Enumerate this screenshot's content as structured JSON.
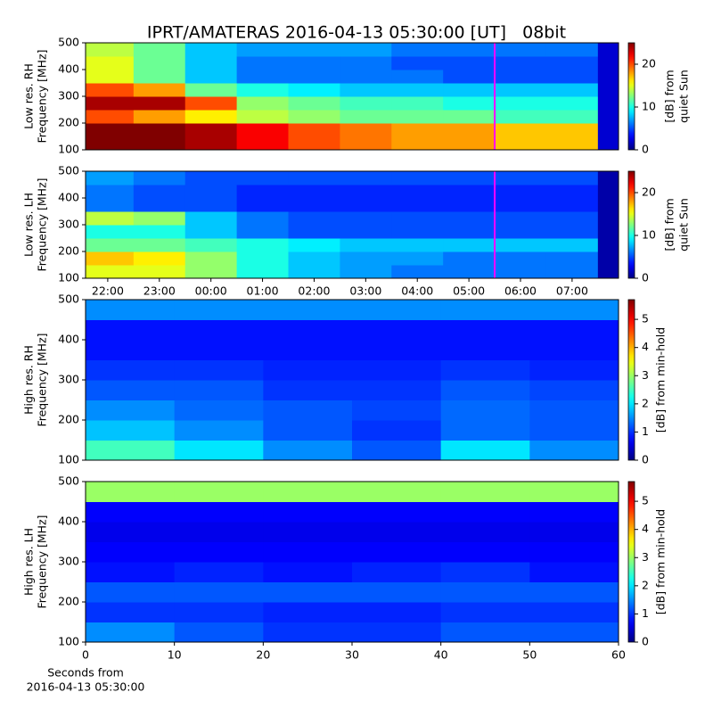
{
  "title": "IPRT/AMATERAS 2016-04-13 05:30:00 [UT]   08bit",
  "chart_data": [
    {
      "type": "heatmap",
      "ylabel_lines": [
        "Low res. RH",
        "Frequency [MHz]"
      ],
      "xlim": [
        21.57,
        31.9
      ],
      "ylim": [
        100,
        500
      ],
      "yticks": [
        100,
        200,
        300,
        400,
        500
      ],
      "x_edges": [
        21.57,
        22.5,
        23.5,
        24.5,
        25.5,
        26.5,
        27.5,
        28.5,
        29.5,
        30.5,
        31.5,
        31.9
      ],
      "y_edges": [
        100,
        150,
        200,
        250,
        300,
        350,
        400,
        450,
        500
      ],
      "z": [
        [
          25,
          25,
          24,
          22,
          20,
          19,
          18,
          18,
          17,
          17,
          2
        ],
        [
          25,
          25,
          24,
          22,
          20,
          19,
          18,
          18,
          17,
          17,
          2
        ],
        [
          20,
          18,
          16,
          14,
          13,
          12,
          12,
          12,
          11,
          11,
          2
        ],
        [
          24,
          24,
          20,
          13,
          12,
          11,
          11,
          10,
          10,
          10,
          2
        ],
        [
          20,
          18,
          12,
          10,
          9,
          8,
          8,
          8,
          8,
          8,
          2
        ],
        [
          15,
          12,
          8,
          6,
          6,
          6,
          6,
          5,
          5,
          5,
          2
        ],
        [
          15,
          12,
          8,
          6,
          6,
          6,
          5,
          5,
          5,
          5,
          2
        ],
        [
          14,
          12,
          8,
          7,
          7,
          7,
          6,
          6,
          6,
          6,
          2
        ]
      ],
      "cursor": {
        "x": 29.5,
        "color": "#ff00ff"
      },
      "colorbar": {
        "label_lines": [
          "[dB] from",
          "quiet Sun"
        ],
        "lim": [
          0,
          25
        ],
        "ticks": [
          0,
          10,
          20
        ]
      }
    },
    {
      "type": "heatmap",
      "ylabel_lines": [
        "Low res. LH",
        "Frequency [MHz]"
      ],
      "xlim": [
        21.57,
        31.9
      ],
      "ylim": [
        100,
        500
      ],
      "yticks": [
        100,
        200,
        300,
        400,
        500
      ],
      "xticks": [
        {
          "value": 22,
          "label": "22:00"
        },
        {
          "value": 23,
          "label": "23:00"
        },
        {
          "value": 24,
          "label": "00:00"
        },
        {
          "value": 25,
          "label": "01:00"
        },
        {
          "value": 26,
          "label": "02:00"
        },
        {
          "value": 27,
          "label": "03:00"
        },
        {
          "value": 28,
          "label": "04:00"
        },
        {
          "value": 29,
          "label": "05:00"
        },
        {
          "value": 30,
          "label": "06:00"
        },
        {
          "value": 31,
          "label": "07:00"
        }
      ],
      "x_edges": [
        21.57,
        22.5,
        23.5,
        24.5,
        25.5,
        26.5,
        27.5,
        28.5,
        29.5,
        30.5,
        31.5,
        31.9
      ],
      "y_edges": [
        100,
        150,
        200,
        250,
        300,
        350,
        400,
        450,
        500
      ],
      "z": [
        [
          15,
          15,
          13,
          10,
          8,
          7,
          6,
          6,
          6,
          6,
          1
        ],
        [
          17,
          16,
          13,
          10,
          8,
          7,
          7,
          6,
          6,
          6,
          1
        ],
        [
          12,
          12,
          11,
          10,
          9,
          8,
          8,
          8,
          8,
          8,
          1
        ],
        [
          10,
          10,
          8,
          6,
          5,
          5,
          5,
          5,
          5,
          5,
          1
        ],
        [
          14,
          13,
          8,
          6,
          5,
          5,
          5,
          5,
          5,
          5,
          1
        ],
        [
          6,
          5,
          5,
          4,
          4,
          4,
          4,
          4,
          4,
          4,
          1
        ],
        [
          6,
          5,
          5,
          4,
          4,
          4,
          4,
          4,
          4,
          4,
          1
        ],
        [
          7,
          6,
          5,
          5,
          5,
          5,
          5,
          5,
          5,
          5,
          1
        ]
      ],
      "cursor": {
        "x": 29.5,
        "color": "#ff00ff"
      },
      "colorbar": {
        "label_lines": [
          "[dB] from",
          "quiet Sun"
        ],
        "lim": [
          0,
          25
        ],
        "ticks": [
          0,
          10,
          20
        ]
      }
    },
    {
      "type": "heatmap",
      "ylabel_lines": [
        "High res. RH",
        "Frequency [MHz]"
      ],
      "xlim": [
        0,
        60
      ],
      "ylim": [
        100,
        500
      ],
      "yticks": [
        100,
        200,
        300,
        400,
        500
      ],
      "x_edges": [
        0,
        10,
        20,
        30,
        40,
        50,
        60
      ],
      "y_edges": [
        100,
        150,
        200,
        250,
        300,
        350,
        400,
        450,
        500
      ],
      "z": [
        [
          2.5,
          2,
          1.5,
          1.2,
          2,
          1.5
        ],
        [
          1.8,
          1.5,
          1.2,
          1,
          1.3,
          1.2
        ],
        [
          1.5,
          1.3,
          1.2,
          1.1,
          1.3,
          1.2
        ],
        [
          1.2,
          1.2,
          1,
          1,
          1.2,
          1.1
        ],
        [
          1,
          1,
          0.9,
          0.9,
          1,
          0.9
        ],
        [
          0.8,
          0.8,
          0.8,
          0.8,
          0.8,
          0.8
        ],
        [
          0.8,
          0.8,
          0.8,
          0.8,
          0.8,
          0.8
        ],
        [
          1.5,
          1.5,
          1.5,
          1.5,
          1.5,
          1.5
        ]
      ],
      "colorbar": {
        "label_lines": [
          "[dB] from min-hold"
        ],
        "lim": [
          0,
          5.7
        ],
        "ticks": [
          0,
          1,
          2,
          3,
          4,
          5
        ]
      }
    },
    {
      "type": "heatmap",
      "ylabel_lines": [
        "High res. LH",
        "Frequency [MHz]"
      ],
      "xlim": [
        0,
        60
      ],
      "ylim": [
        100,
        500
      ],
      "yticks": [
        100,
        200,
        300,
        400,
        500
      ],
      "xticks": [
        0,
        10,
        20,
        30,
        40,
        50,
        60
      ],
      "xlabel_lines": [
        "Seconds from",
        "2016-04-13 05:30:00"
      ],
      "x_edges": [
        0,
        10,
        20,
        30,
        40,
        50,
        60
      ],
      "y_edges": [
        100,
        150,
        200,
        250,
        300,
        350,
        400,
        450,
        500
      ],
      "z": [
        [
          1.5,
          1.2,
          1,
          1,
          1.2,
          1.2
        ],
        [
          1,
          1,
          0.9,
          0.9,
          1,
          1
        ],
        [
          1.2,
          1.2,
          1.2,
          1.2,
          1.2,
          1.2
        ],
        [
          0.8,
          0.9,
          0.8,
          0.9,
          1,
          0.8
        ],
        [
          0.7,
          0.7,
          0.7,
          0.7,
          0.7,
          0.7
        ],
        [
          0.6,
          0.6,
          0.6,
          0.6,
          0.6,
          0.6
        ],
        [
          0.7,
          0.7,
          0.7,
          0.7,
          0.7,
          0.7
        ],
        [
          3,
          3,
          3,
          3,
          3,
          3
        ]
      ],
      "colorbar": {
        "label_lines": [
          "[dB] from min-hold"
        ],
        "lim": [
          0,
          5.7
        ],
        "ticks": [
          0,
          1,
          2,
          3,
          4,
          5
        ]
      }
    }
  ]
}
